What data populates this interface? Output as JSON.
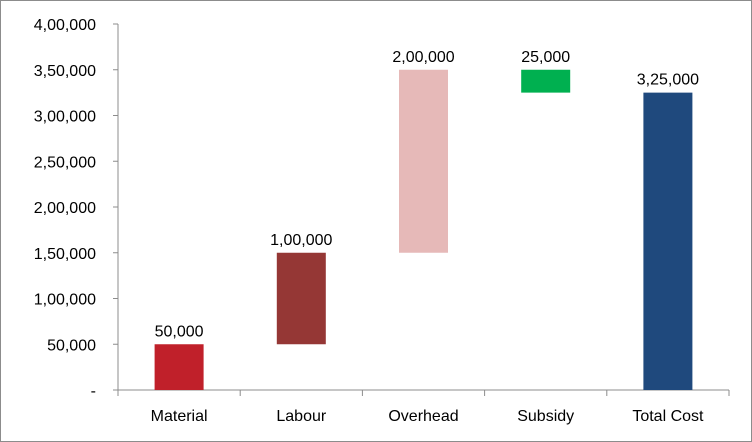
{
  "chart_data": {
    "type": "waterfall",
    "title": "",
    "xlabel": "",
    "ylabel": "",
    "ylim": [
      0,
      400000
    ],
    "ytick_step": 50000,
    "y_tick_labels": [
      "-",
      "50,000",
      "1,00,000",
      "1,50,000",
      "2,00,000",
      "2,50,000",
      "3,00,000",
      "3,50,000",
      "4,00,000"
    ],
    "grid": false,
    "legend": "none",
    "categories": [
      "Material",
      "Labour",
      "Overhead",
      "Subsidy",
      "Total Cost"
    ],
    "bars": [
      {
        "category": "Material",
        "start": 0,
        "end": 50000,
        "value": 50000,
        "label": "50,000",
        "color": "#c0202a"
      },
      {
        "category": "Labour",
        "start": 50000,
        "end": 150000,
        "value": 100000,
        "label": "1,00,000",
        "color": "#953735"
      },
      {
        "category": "Overhead",
        "start": 150000,
        "end": 350000,
        "value": 200000,
        "label": "2,00,000",
        "color": "#e6b9b8"
      },
      {
        "category": "Subsidy",
        "start": 325000,
        "end": 350000,
        "value": 25000,
        "label": "25,000",
        "color": "#00b050"
      },
      {
        "category": "Total Cost",
        "start": 0,
        "end": 325000,
        "value": 325000,
        "label": "3,25,000",
        "color": "#1f497d"
      }
    ]
  }
}
